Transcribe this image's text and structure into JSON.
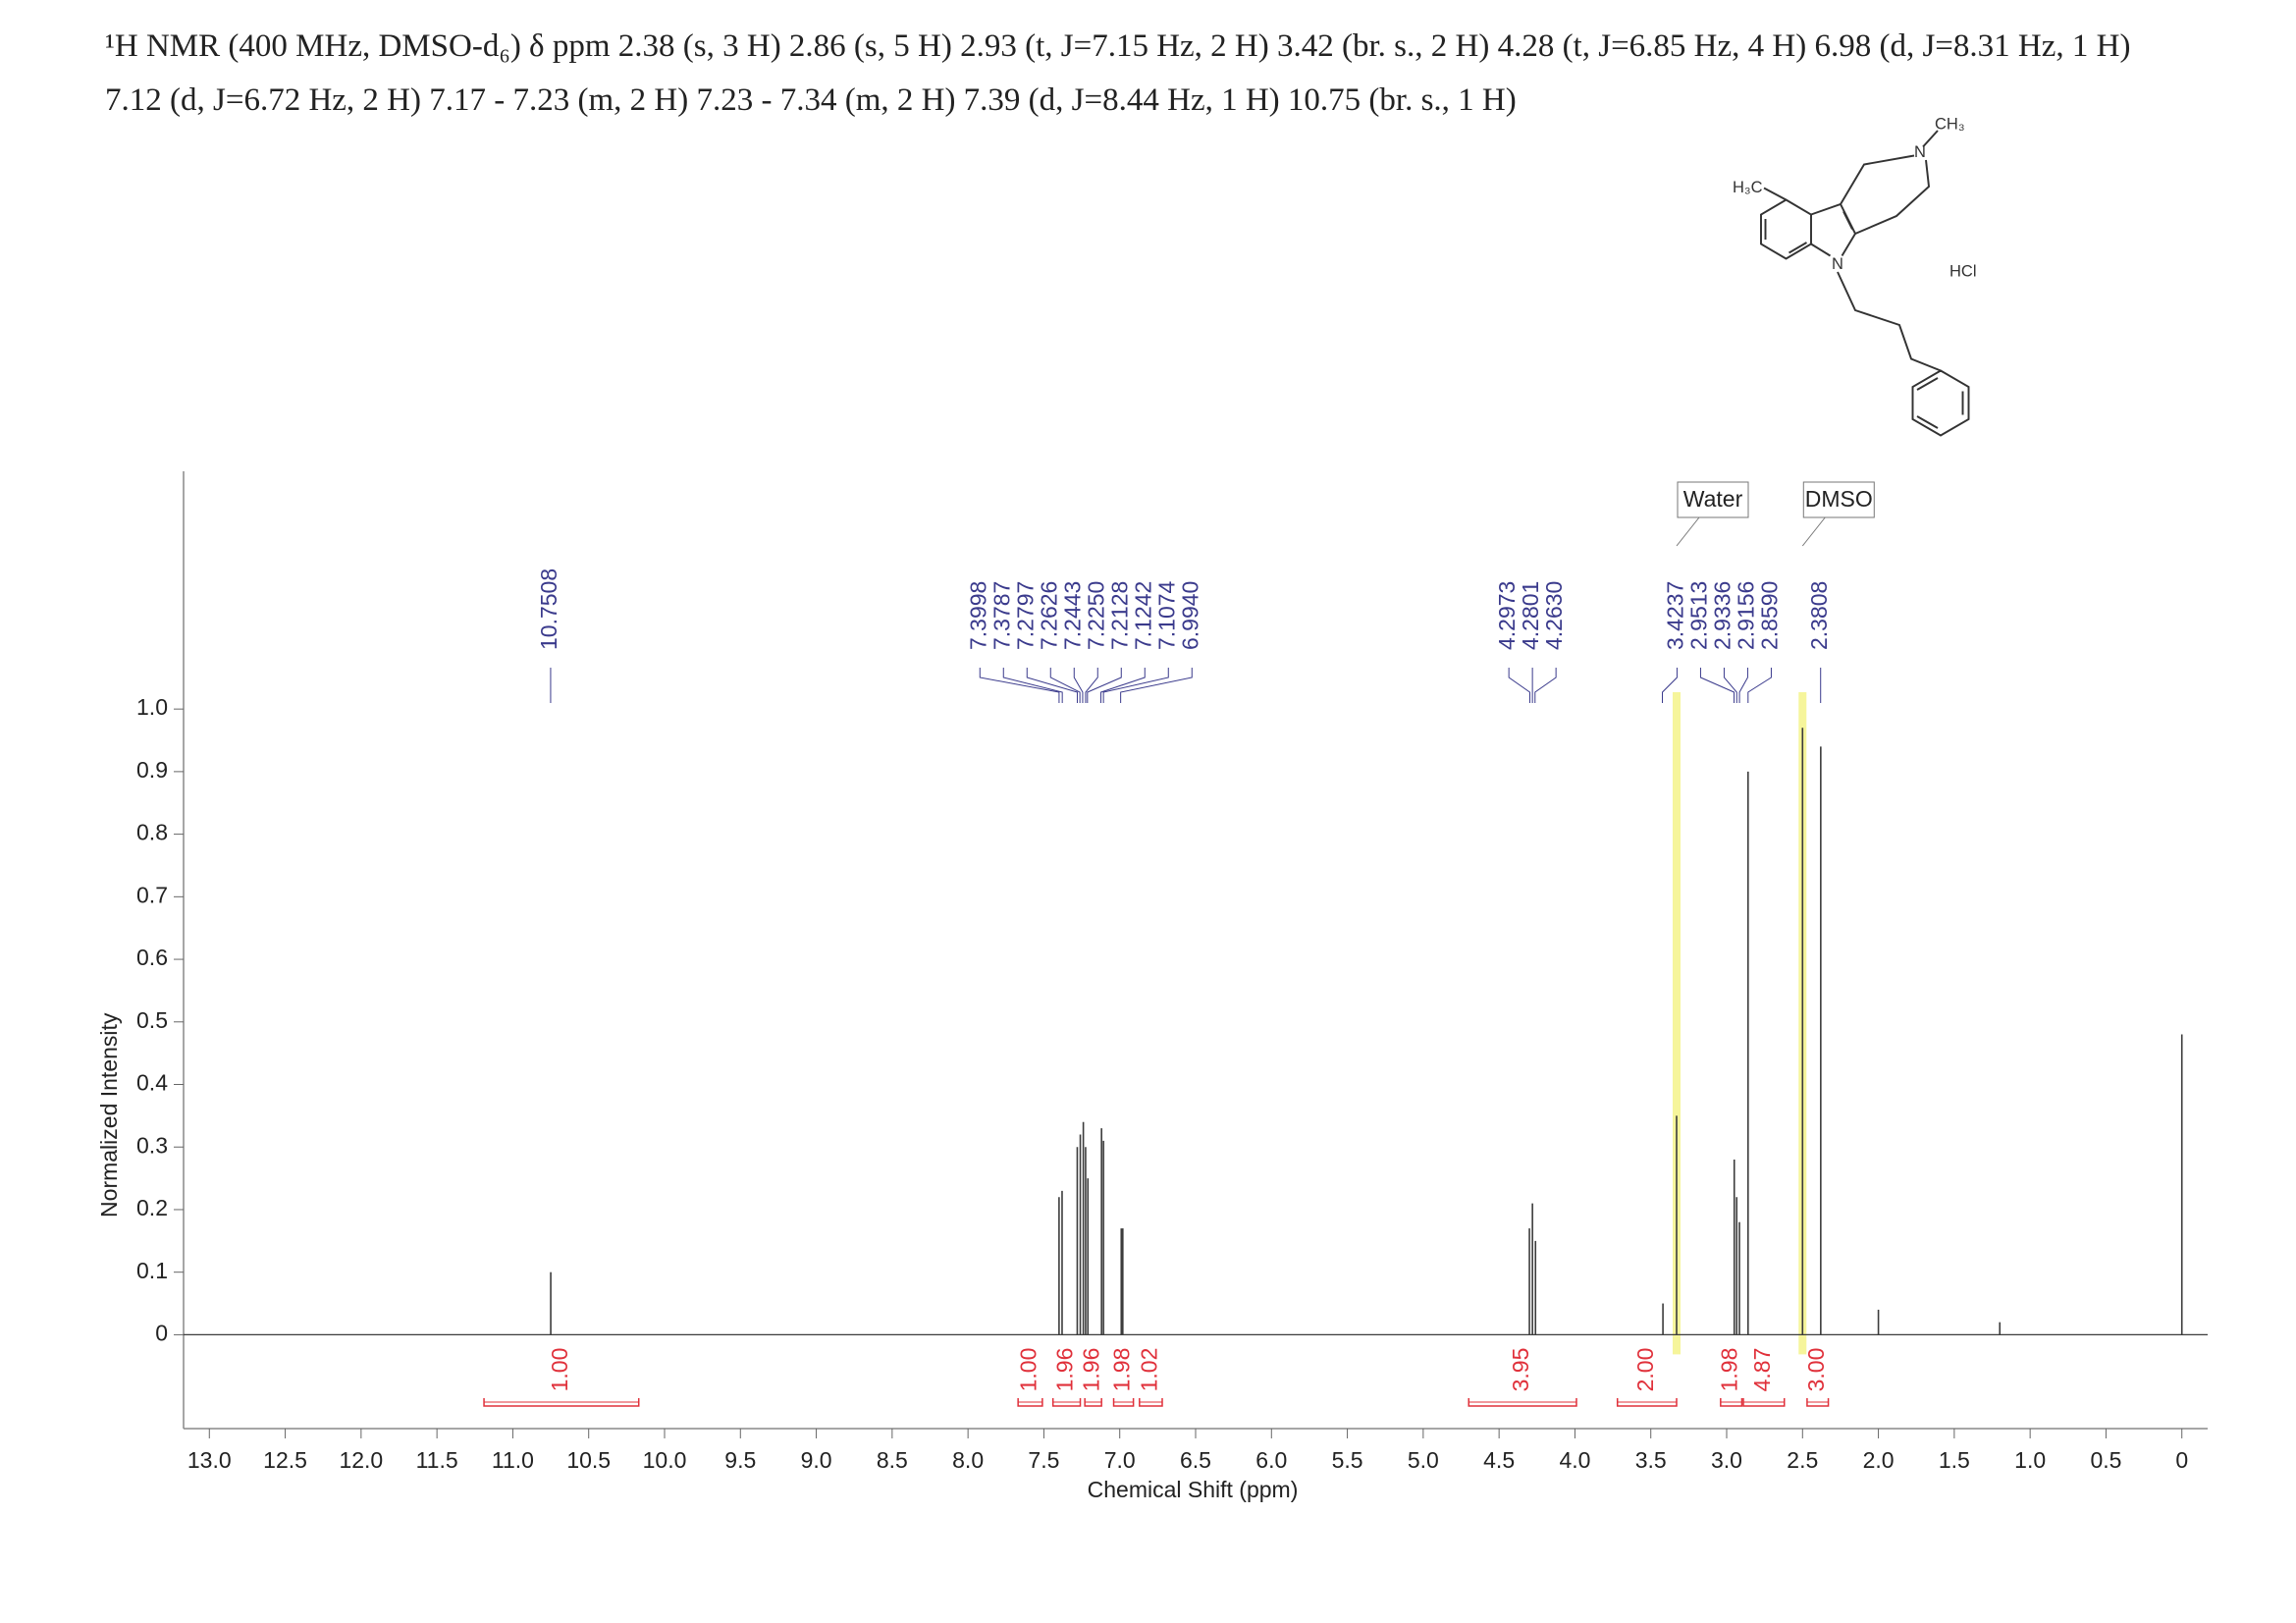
{
  "chart_data": {
    "type": "spectrum",
    "title_lines": [
      "¹H NMR (400 MHz, DMSO-d₆) δ ppm 2.38 (s, 3 H) 2.86 (s, 5 H) 2.93 (t, J=7.15 Hz, 2 H) 3.42 (br. s., 2 H) 4.28 (t, J=6.85 Hz, 4 H) 6.98 (d, J=8.31 Hz, 1 H)",
      "7.12 (d, J=6.72 Hz, 2 H) 7.17 - 7.23 (m, 2 H) 7.23 - 7.34 (m, 2 H) 7.39 (d, J=8.44 Hz, 1 H) 10.75 (br. s., 1 H)"
    ],
    "x_label": "Chemical Shift (ppm)",
    "y_label": "Normalized Intensity",
    "xlim": [
      13.17,
      -0.17
    ],
    "ylim": [
      -0.15,
      1.38
    ],
    "xticks": [
      {
        "value": 13,
        "label": "13.0"
      },
      12.5,
      {
        "value": 12,
        "label": "12.0"
      },
      11.5,
      {
        "value": 11,
        "label": "11.0"
      },
      10.5,
      {
        "value": 10,
        "label": "10.0"
      },
      9.5,
      {
        "value": 9,
        "label": "9.0"
      },
      8.5,
      {
        "value": 8,
        "label": "8.0"
      },
      7.5,
      {
        "value": 7,
        "label": "7.0"
      },
      6.5,
      {
        "value": 6,
        "label": "6.0"
      },
      5.5,
      {
        "value": 5,
        "label": "5.0"
      },
      4.5,
      {
        "value": 4,
        "label": "4.0"
      },
      3.5,
      {
        "value": 3,
        "label": "3.0"
      },
      2.5,
      {
        "value": 2,
        "label": "2.0"
      },
      1.5,
      {
        "value": 1,
        "label": "1.0"
      },
      0.5,
      0
    ],
    "yticks": [
      0,
      0.1,
      0.2,
      0.3,
      0.4,
      0.5,
      0.6,
      0.7,
      0.8,
      0.9,
      {
        "value": 1,
        "label": "1.0"
      }
    ],
    "color": "#3c3c3c",
    "x": [
      10.75,
      7.4,
      7.38,
      7.28,
      7.26,
      7.24,
      7.225,
      7.21,
      7.12,
      7.107,
      6.99,
      6.98,
      4.3,
      4.28,
      4.26,
      3.42,
      3.33,
      2.95,
      2.934,
      2.916,
      2.859,
      2.5,
      2.38,
      2.0,
      1.2,
      0
    ],
    "values": [
      0.1,
      0.22,
      0.23,
      0.3,
      0.32,
      0.34,
      0.3,
      0.25,
      0.33,
      0.31,
      0.17,
      0.17,
      0.17,
      0.21,
      0.15,
      0.05,
      0.35,
      0.28,
      0.22,
      0.18,
      0.9,
      0.97,
      0.94,
      0.04,
      0.02,
      0.48
    ],
    "peak_label_groups": [
      [
        10.7508
      ],
      [
        7.3998,
        7.3787,
        7.2797,
        7.2626,
        7.2443,
        {
          "value": 7.225,
          "label": "7.2250"
        },
        7.2128,
        7.1242,
        7.1074,
        {
          "value": 6.994,
          "label": "6.9940"
        }
      ],
      [
        4.2973,
        4.2801,
        {
          "value": 4.263,
          "label": "4.2630"
        }
      ],
      [
        3.4237,
        2.9513,
        2.9336,
        2.9156,
        {
          "value": 2.859,
          "label": "2.8590"
        }
      ],
      [
        2.3808
      ]
    ],
    "integrals": [
      {
        "value": 1,
        "label": "1.00"
      },
      {
        "value": 1,
        "label": "1.00"
      },
      1.96,
      1.96,
      1.98,
      1.02,
      3.95,
      {
        "value": 2,
        "label": "2.00"
      },
      1.98,
      4.87,
      {
        "value": 3,
        "label": "3.00"
      }
    ],
    "integral_ranges": [
      [
        11.19,
        10.17
      ],
      [
        7.67,
        7.51
      ],
      [
        7.44,
        7.26
      ],
      [
        7.23,
        7.12
      ],
      [
        7.04,
        6.91
      ],
      [
        6.87,
        6.72
      ],
      [
        4.7,
        3.99
      ],
      [
        3.72,
        3.33
      ],
      [
        3.04,
        2.9
      ],
      [
        2.89,
        2.62
      ],
      [
        2.47,
        2.33
      ]
    ],
    "integral_color": "#e0303a",
    "annotations": [
      {
        "text": "Water",
        "x": 3.33
      },
      {
        "text": "DMSO",
        "x": 2.5
      }
    ],
    "structure_labels": [
      "H₃C",
      "CH₃",
      "N",
      "N",
      "HCl"
    ]
  }
}
